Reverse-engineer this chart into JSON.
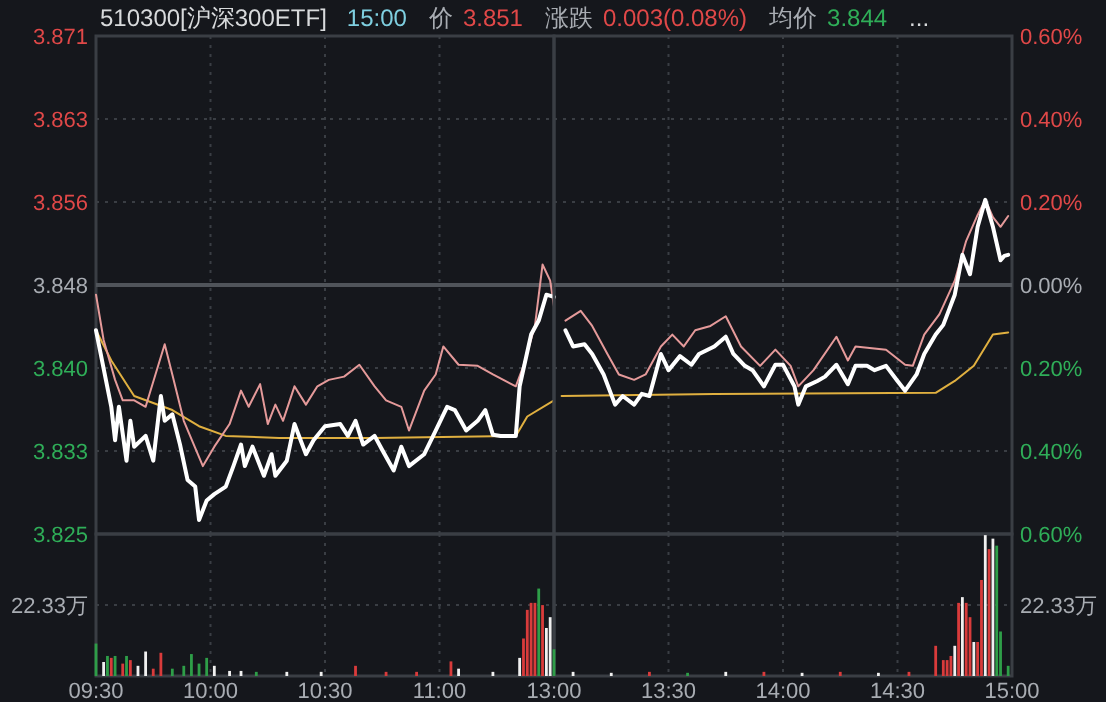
{
  "chart_data": [
    {
      "type": "line",
      "title": "510300[沪深300ETF]",
      "annotations": [
        "15:00",
        "价",
        "3.851",
        "涨跌",
        "0.003(0.08%)",
        "均价",
        "3.844",
        "..."
      ],
      "xlim": [
        9.5,
        11.5
      ],
      "xticks": [
        {
          "value": 9.5,
          "label": null
        },
        {
          "value": 10,
          "label": null
        },
        {
          "value": 10.5,
          "label": null
        },
        {
          "value": 11,
          "label": null
        }
      ],
      "ylim": [
        3.8249,
        3.8711
      ],
      "yticks": [
        {
          "value": 3.8249,
          "label": "3.825"
        },
        {
          "value": 3.8326,
          "label": "3.833"
        },
        {
          "value": 3.8403,
          "label": "3.840"
        },
        3.848,
        {
          "value": 3.8557,
          "label": "3.856"
        },
        {
          "value": 3.8634,
          "label": "3.863"
        },
        {
          "value": 3.8711,
          "label": "3.871"
        }
      ],
      "grid": true,
      "tick_labels": "y",
      "ref_lines": [
        {
          "axis": "y",
          "value": 3.848,
          "color": "#50545a"
        }
      ],
      "series": [
        {
          "color": "#e0b040",
          "x": [
            9.5,
            9.5667,
            9.6667,
            9.8333,
            9.95,
            10.0667,
            10.3,
            10.7167,
            11.3333,
            11.3833,
            11.5
          ],
          "values": [
            3.8438,
            3.841,
            3.8377,
            3.8364,
            3.8349,
            3.834,
            3.8338,
            3.8338,
            3.834,
            3.8358,
            3.8373
          ]
        },
        {
          "color": "#e59a9a",
          "x": [
            9.5,
            9.5333,
            9.5833,
            9.6167,
            9.6667,
            9.7167,
            9.8,
            9.8333,
            9.8833,
            9.9667,
            10.0167,
            10.0833,
            10.1333,
            10.1667,
            10.2167,
            10.25,
            10.2833,
            10.3167,
            10.3667,
            10.4167,
            10.4667,
            10.5167,
            10.5833,
            10.65,
            10.7167,
            10.7667,
            10.8333,
            10.8667,
            10.9333,
            10.9833,
            11.0167,
            11.0833,
            11.1667,
            11.2333,
            11.3333,
            11.3667,
            11.4167,
            11.45,
            11.4833,
            11.5
          ],
          "values": [
            3.8471,
            3.8429,
            3.8392,
            3.8373,
            3.8373,
            3.8367,
            3.8425,
            3.8397,
            3.8354,
            3.8312,
            3.833,
            3.8351,
            3.8382,
            3.8367,
            3.8388,
            3.8351,
            3.8369,
            3.8354,
            3.8386,
            3.8369,
            3.8386,
            3.8392,
            3.8395,
            3.8406,
            3.8386,
            3.8373,
            3.8367,
            3.8345,
            3.8382,
            3.8397,
            3.8423,
            3.8406,
            3.8405,
            3.8397,
            3.8386,
            3.8405,
            3.8442,
            3.8499,
            3.8484,
            3.846
          ]
        },
        {
          "color": "#ffffff",
          "x": [
            9.5,
            9.5667,
            9.5833,
            9.6,
            9.6333,
            9.65,
            9.6667,
            9.7167,
            9.75,
            9.7833,
            9.8,
            9.8333,
            9.8667,
            9.9,
            9.9333,
            9.95,
            9.9833,
            10.0167,
            10.0667,
            10.1,
            10.1333,
            10.15,
            10.1833,
            10.2333,
            10.2667,
            10.2833,
            10.3333,
            10.3667,
            10.4167,
            10.45,
            10.5,
            10.5667,
            10.6,
            10.6333,
            10.6667,
            10.7167,
            10.75,
            10.8,
            10.8333,
            10.8667,
            10.9333,
            10.9833,
            11.0333,
            11.0667,
            11.1167,
            11.1667,
            11.2,
            11.2333,
            11.2667,
            11.3333,
            11.35,
            11.4,
            11.4333,
            11.4667,
            11.5
          ],
          "values": [
            3.8438,
            3.8367,
            3.8336,
            3.8367,
            3.8317,
            3.8354,
            3.833,
            3.834,
            3.8317,
            3.8377,
            3.8354,
            3.836,
            3.8332,
            3.8299,
            3.8293,
            3.8262,
            3.828,
            3.8286,
            3.8293,
            3.8312,
            3.8332,
            3.8312,
            3.833,
            3.8303,
            3.8323,
            3.8303,
            3.8317,
            3.8351,
            3.8323,
            3.8336,
            3.8349,
            3.8351,
            3.834,
            3.8354,
            3.8332,
            3.834,
            3.8327,
            3.8308,
            3.833,
            3.8312,
            3.8323,
            3.8345,
            3.8367,
            3.8364,
            3.8345,
            3.8354,
            3.8364,
            3.8341,
            3.834,
            3.834,
            3.8386,
            3.8434,
            3.8447,
            3.8471,
            3.8469
          ]
        }
      ]
    },
    {
      "type": "line",
      "xlim": [
        13,
        15
      ],
      "xticks": [
        {
          "value": 13,
          "label": null
        },
        {
          "value": 13.5,
          "label": null
        },
        {
          "value": 14,
          "label": null
        },
        {
          "value": 14.5,
          "label": null
        },
        {
          "value": 15,
          "label": null
        }
      ],
      "ylim": [
        3.8249,
        3.8711
      ],
      "yticks": [
        {
          "value": 3.8249,
          "label": null
        },
        {
          "value": 3.8326,
          "label": null
        },
        {
          "value": 3.8403,
          "label": null
        },
        {
          "value": 3.848,
          "label": null
        },
        {
          "value": 3.8557,
          "label": null
        },
        {
          "value": 3.8634,
          "label": null
        },
        {
          "value": 3.8711,
          "label": null
        }
      ],
      "y2lim": [
        -0.6,
        0.6
      ],
      "y2ticks": [
        {
          "value": -0.6,
          "label": "0.60%"
        },
        {
          "value": -0.4,
          "label": "0.40%"
        },
        {
          "value": -0.2,
          "label": "0.20%"
        },
        {
          "value": 0,
          "label": "0.00%"
        },
        {
          "value": 0.2,
          "label": "0.20%"
        },
        {
          "value": 0.4,
          "label": "0.40%"
        },
        {
          "value": 0.6,
          "label": "0.60%"
        }
      ],
      "grid": true,
      "tick_labels": false,
      "ref_lines": [
        {
          "axis": "y",
          "value": 3.848,
          "color": "#50545a"
        }
      ],
      "series": [
        {
          "color": "#e0b040",
          "x": [
            13.0333,
            13.7,
            14.6667,
            14.75,
            14.8333,
            14.9167,
            14.9833
          ],
          "values": [
            3.8377,
            3.8379,
            3.838,
            3.8391,
            3.8405,
            3.8434,
            3.8436
          ]
        },
        {
          "color": "#e59a9a",
          "x": [
            13.05,
            13.1167,
            13.1667,
            13.2333,
            13.2833,
            13.35,
            13.4,
            13.4667,
            13.5167,
            13.5667,
            13.6167,
            13.6833,
            13.75,
            13.8167,
            13.9,
            13.9667,
            14.0333,
            14.0667,
            14.1333,
            14.2333,
            14.2833,
            14.3167,
            14.45,
            14.5333,
            14.5667,
            14.6167,
            14.6833,
            14.75,
            14.8,
            14.85,
            14.8833,
            14.9167,
            14.95,
            14.9833
          ],
          "values": [
            3.8447,
            3.8456,
            3.8442,
            3.8416,
            3.8397,
            3.8392,
            3.8397,
            3.8423,
            3.8434,
            3.8423,
            3.8438,
            3.8442,
            3.8451,
            3.8423,
            3.8405,
            3.842,
            3.8405,
            3.8386,
            3.8401,
            3.8432,
            3.841,
            3.8423,
            3.842,
            3.8406,
            3.8405,
            3.8434,
            3.8453,
            3.8484,
            3.8521,
            3.8545,
            3.8559,
            3.8543,
            3.8534,
            3.8544
          ]
        },
        {
          "color": "#ffffff",
          "x": [
            13.05,
            13.0833,
            13.1333,
            13.1667,
            13.2167,
            13.2667,
            13.3,
            13.35,
            13.3833,
            13.4167,
            13.4667,
            13.5,
            13.55,
            13.6,
            13.6333,
            13.7,
            13.75,
            13.7833,
            13.8333,
            13.8667,
            13.9167,
            13.9667,
            14.0,
            14.05,
            14.0667,
            14.1,
            14.15,
            14.1833,
            14.2333,
            14.2833,
            14.3167,
            14.3667,
            14.4,
            14.45,
            14.5,
            14.5333,
            14.5833,
            14.6167,
            14.6667,
            14.7,
            14.75,
            14.7833,
            14.8167,
            14.85,
            14.8833,
            14.9167,
            14.95,
            14.9667,
            14.9833
          ],
          "values": [
            3.8438,
            3.8423,
            3.8425,
            3.8416,
            3.8397,
            3.8369,
            3.8377,
            3.8369,
            3.8379,
            3.8377,
            3.8416,
            3.8401,
            3.8414,
            3.8406,
            3.8416,
            3.8423,
            3.8432,
            3.8416,
            3.8405,
            3.8401,
            3.8386,
            3.8406,
            3.8406,
            3.8386,
            3.8369,
            3.8386,
            3.8391,
            3.8395,
            3.8406,
            3.8388,
            3.8405,
            3.8405,
            3.8401,
            3.8405,
            3.8391,
            3.8382,
            3.8397,
            3.8416,
            3.8434,
            3.8443,
            3.8471,
            3.8508,
            3.849,
            3.8534,
            3.8559,
            3.8534,
            3.8503,
            3.8507,
            3.8508
          ]
        }
      ]
    },
    {
      "type": "bar",
      "ylim": [
        0,
        44.66
      ],
      "yticks": [
        {
          "value": 22.33,
          "label": "22.33万"
        }
      ],
      "xlim": [
        9.5,
        11.5
      ],
      "xticks": [
        {
          "value": 9.5,
          "label": "09:30"
        },
        {
          "value": 10,
          "label": "10:00"
        },
        {
          "value": 10.5,
          "label": "10:30"
        },
        {
          "value": 11,
          "label": "11:00"
        }
      ],
      "grid": true,
      "series": [
        {
          "x": [
            9.5,
            9.5333,
            9.55,
            9.5667,
            9.5833,
            9.6167,
            9.6333,
            9.65,
            9.6833,
            9.7167,
            9.75,
            9.7833,
            9.8333,
            9.8833,
            9.9167,
            9.95,
            9.9833,
            10.0167,
            10.0833,
            10.1333,
            10.2,
            10.3333,
            10.4833,
            10.6333,
            10.7667,
            10.9,
            11.05,
            11.0833,
            11.2333,
            11.35,
            11.3667,
            11.3833,
            11.4,
            11.4167,
            11.4333,
            11.45,
            11.4667,
            11.4833
          ],
          "values": [
            10.2,
            4.4,
            6.3,
            5.7,
            6.3,
            3.9,
            6.3,
            5.0,
            3.2,
            7.7,
            2.3,
            7.3,
            2.3,
            3.2,
            6.9,
            3.9,
            5.7,
            3.2,
            1.6,
            1.6,
            1.3,
            1.3,
            1.3,
            3.2,
            1.3,
            1.3,
            4.6,
            2.3,
            1.3,
            5.7,
            11.8,
            20.8,
            23.0,
            23.0,
            27.5,
            22.3,
            15.1,
            18.5
          ],
          "colors": [
            "#2e9e48",
            "#f0f0f0",
            "#2e9e48",
            "#d93b3b",
            "#2e9e48",
            "#d93b3b",
            "#2e9e48",
            "#d93b3b",
            "#f0f0f0",
            "#f0f0f0",
            "#d93b3b",
            "#d93b3b",
            "#2e9e48",
            "#2e9e48",
            "#2e9e48",
            "#2e9e48",
            "#2e9e48",
            "#f0f0f0",
            "#f0f0f0",
            "#f0f0f0",
            "#2e9e48",
            "#f0f0f0",
            "#f0f0f0",
            "#d93b3b",
            "#d93b3b",
            "#d93b3b",
            "#d93b3b",
            "#f0f0f0",
            "#f0f0f0",
            "#f0f0f0",
            "#d93b3b",
            "#d93b3b",
            "#d93b3b",
            "#d93b3b",
            "#2e9e48",
            "#d93b3b",
            "#f0f0f0",
            "#f0f0f0"
          ]
        }
      ]
    },
    {
      "type": "bar",
      "ylim": [
        0,
        44.66
      ],
      "yticks": [
        {
          "value": 22.33,
          "label": "22.33万"
        }
      ],
      "xlim": [
        13,
        15
      ],
      "xticks": [
        {
          "value": 13,
          "label": "13:00"
        },
        {
          "value": 13.5,
          "label": "13:30"
        },
        {
          "value": 14,
          "label": "14:00"
        },
        {
          "value": 14.5,
          "label": "14:30"
        },
        {
          "value": 15,
          "label": "15:00"
        }
      ],
      "grid": true,
      "series": [
        {
          "x": [
            13.0,
            13.0833,
            13.25,
            13.4167,
            13.5833,
            13.75,
            13.9167,
            14.0833,
            14.25,
            14.4167,
            14.55,
            14.6667,
            14.7,
            14.7167,
            14.7333,
            14.75,
            14.7667,
            14.7833,
            14.8,
            14.8167,
            14.8333,
            14.85,
            14.8667,
            14.8833,
            14.9,
            14.9167,
            14.9333,
            14.95,
            14.9833
          ],
          "values": [
            8.4,
            1.3,
            1.0,
            1.3,
            1.0,
            1.3,
            1.3,
            1.0,
            1.3,
            1.0,
            1.3,
            9.5,
            5.0,
            5.0,
            6.3,
            9.5,
            23.0,
            24.8,
            23.0,
            18.5,
            10.7,
            10.7,
            30.2,
            44.3,
            39.9,
            43.2,
            41.0,
            14.0,
            3.2
          ],
          "colors": [
            "#2e9e48",
            "#f0f0f0",
            "#f0f0f0",
            "#d93b3b",
            "#2e9e48",
            "#f0f0f0",
            "#d93b3b",
            "#f0f0f0",
            "#d93b3b",
            "#f0f0f0",
            "#d93b3b",
            "#d93b3b",
            "#d93b3b",
            "#d93b3b",
            "#d93b3b",
            "#f0f0f0",
            "#d93b3b",
            "#f0f0f0",
            "#d93b3b",
            "#d93b3b",
            "#f0f0f0",
            "#d93b3b",
            "#d93b3b",
            "#f0f0f0",
            "#d93b3b",
            "#f0f0f0",
            "#2e9e48",
            "#2e9e48",
            "#2e9e48"
          ]
        }
      ]
    }
  ]
}
